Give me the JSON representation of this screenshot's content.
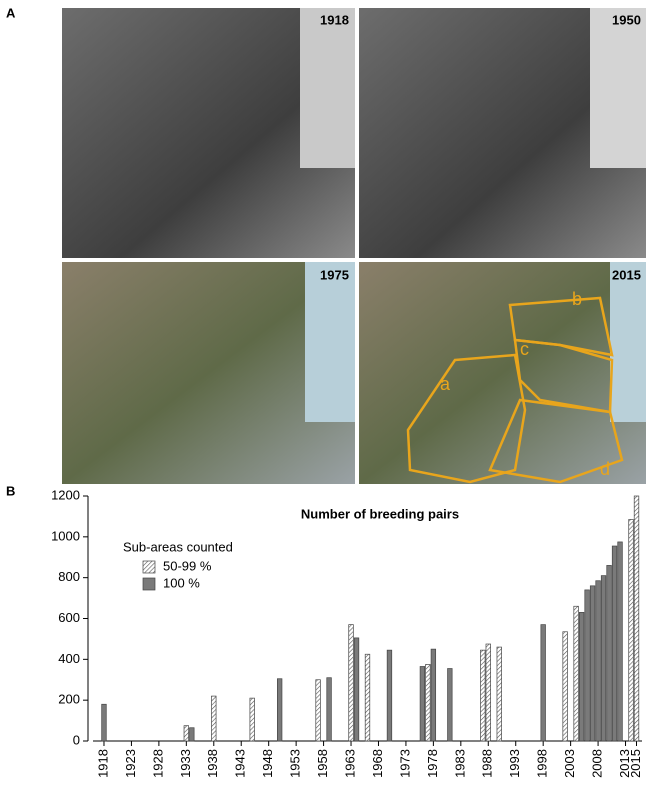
{
  "panel_a": {
    "label": "A",
    "photos": [
      "1918",
      "1950",
      "1975",
      "2015"
    ],
    "zones": [
      "a",
      "b",
      "c",
      "d"
    ]
  },
  "panel_b": {
    "label": "B"
  },
  "chart_data": {
    "type": "bar",
    "title": "Number of breeding pairs",
    "legend_title": "Sub-areas counted",
    "series": [
      {
        "name": "50-99 %",
        "color": "#ffffff",
        "hatch": true,
        "x": [
          1933,
          1938,
          1945,
          1957,
          1963,
          1966,
          1977,
          1987,
          1988,
          1990,
          2002,
          2004,
          2014,
          2015
        ],
        "values": [
          75,
          220,
          210,
          300,
          570,
          425,
          375,
          445,
          475,
          460,
          535,
          660,
          1085,
          1200
        ]
      },
      {
        "name": "100 %",
        "color": "#7a7a7a",
        "hatch": false,
        "x": [
          1918,
          1934,
          1950,
          1959,
          1964,
          1970,
          1976,
          1978,
          1981,
          1998,
          2005,
          2006,
          2007,
          2008,
          2009,
          2010,
          2011,
          2012
        ],
        "values": [
          180,
          65,
          305,
          310,
          505,
          445,
          365,
          450,
          355,
          570,
          630,
          740,
          760,
          785,
          810,
          860,
          955,
          975
        ]
      }
    ],
    "xlim": [
      1916,
      2016
    ],
    "xticks": [
      1918,
      1923,
      1928,
      1933,
      1938,
      1943,
      1948,
      1953,
      1958,
      1963,
      1968,
      1973,
      1978,
      1983,
      1988,
      1993,
      1998,
      2003,
      2008,
      2013,
      2015
    ],
    "ylim": [
      0,
      1200
    ],
    "yticks": [
      0,
      200,
      400,
      600,
      800,
      1000,
      1200
    ]
  }
}
